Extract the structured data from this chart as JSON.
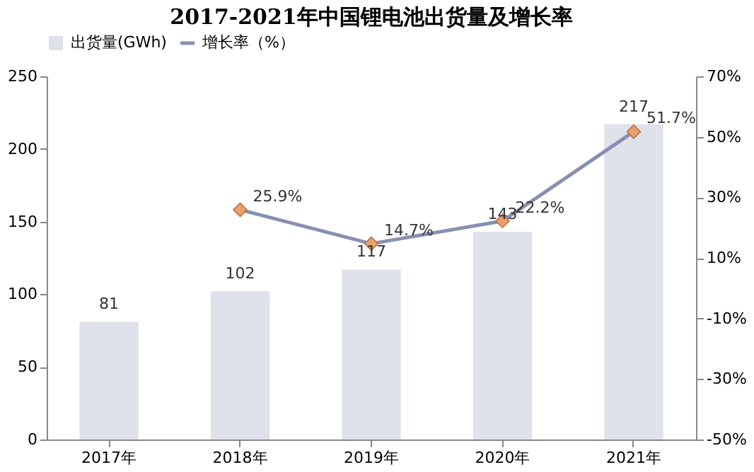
{
  "chart_data": {
    "type": "bar",
    "title": "2017-2021年中国锂电池出货量及增长率",
    "categories": [
      "2017年",
      "2018年",
      "2019年",
      "2020年",
      "2021年"
    ],
    "series": [
      {
        "name": "出货量(GWh)",
        "color": "#dfe2ea",
        "values": [
          81,
          102,
          117,
          143,
          217
        ]
      },
      {
        "name": "增长率（%）",
        "type": "line",
        "axis": "y2",
        "color": "#8790b0",
        "marker": "diamond",
        "values": [
          null,
          25.9,
          14.7,
          22.2,
          51.7
        ],
        "value_labels": [
          null,
          "25.9%",
          "14.7%",
          "22.2%",
          "51.7%"
        ]
      }
    ],
    "ylim": [
      0,
      250
    ],
    "yticks": [
      0,
      50,
      100,
      150,
      200,
      250
    ],
    "y2lim": [
      -50,
      70
    ],
    "y2ticks": [
      {
        "value": -50,
        "label": "-50%"
      },
      {
        "value": -30,
        "label": "-30%"
      },
      {
        "value": -10,
        "label": "-10%"
      },
      {
        "value": 10,
        "label": "10%"
      },
      {
        "value": 30,
        "label": "30%"
      },
      {
        "value": 50,
        "label": "50%"
      },
      {
        "value": 70,
        "label": "70%"
      }
    ],
    "data_labels": true,
    "legend": "top",
    "grid": false,
    "line_style": "solid"
  }
}
